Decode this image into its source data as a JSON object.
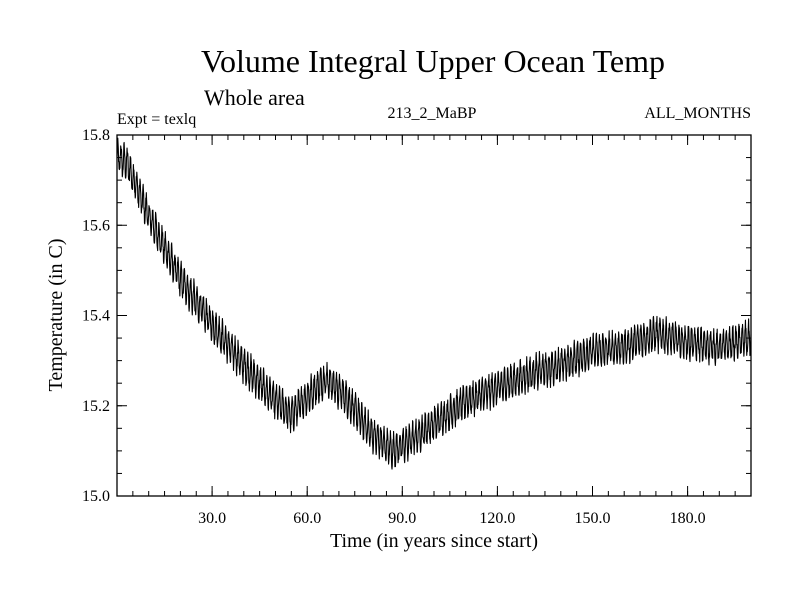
{
  "chart_data": {
    "type": "line",
    "title": "Volume Integral Upper Ocean Temp",
    "subtitle": "Whole area",
    "info_left": "Expt = texlq",
    "info_center": "213_2_MaBP",
    "info_right": "ALL_MONTHS",
    "xlabel": "Time (in years since start)",
    "ylabel": "Temperature (in C)",
    "xlim": [
      0,
      200
    ],
    "ylim": [
      15.0,
      15.8
    ],
    "x_ticks": [
      30,
      60,
      90,
      120,
      150,
      180
    ],
    "x_tick_labels": [
      "30.0",
      "60.0",
      "90.0",
      "120.0",
      "150.0",
      "180.0"
    ],
    "y_ticks": [
      15.0,
      15.2,
      15.4,
      15.6,
      15.8
    ],
    "y_tick_labels": [
      "15.0",
      "15.2",
      "15.4",
      "15.6",
      "15.8"
    ],
    "x_minor_step": 5,
    "y_minor_step": 0.05,
    "samples_per_year": 12,
    "seasonal_amplitude": 0.032,
    "noise_amplitude": 0.012,
    "trend": {
      "x": [
        0,
        3,
        10,
        20,
        30,
        40,
        50,
        55,
        60,
        66,
        72,
        80,
        87,
        92,
        100,
        110,
        120,
        130,
        140,
        150,
        160,
        170,
        180,
        190,
        200
      ],
      "y": [
        15.75,
        15.74,
        15.62,
        15.48,
        15.38,
        15.29,
        15.21,
        15.18,
        15.22,
        15.26,
        15.22,
        15.14,
        15.1,
        15.12,
        15.16,
        15.21,
        15.24,
        15.27,
        15.29,
        15.32,
        15.33,
        15.36,
        15.34,
        15.33,
        15.35
      ]
    }
  }
}
